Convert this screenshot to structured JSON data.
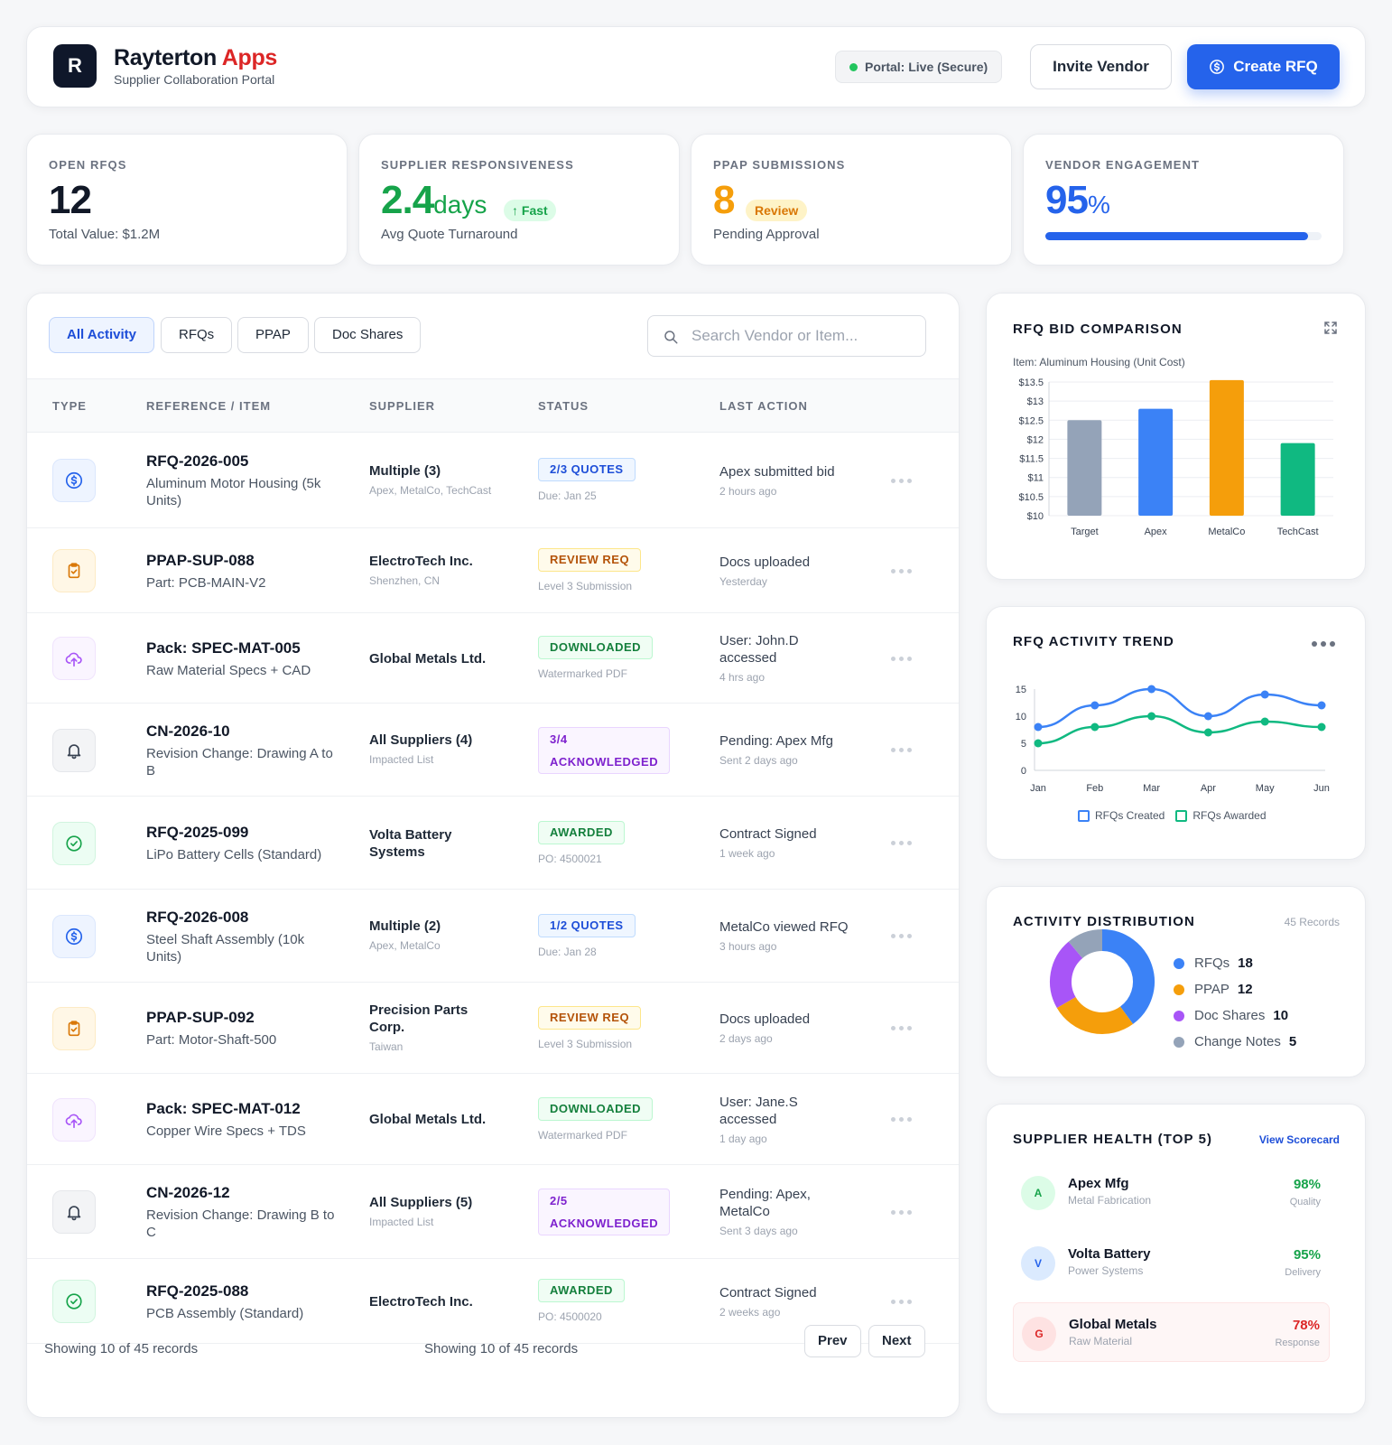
{
  "header": {
    "logo_letter": "R",
    "brand_name": "Rayterton",
    "brand_accent": "Apps",
    "subtitle": "Supplier Collaboration Portal",
    "portal_status": "Portal: Live (Secure)",
    "invite_label": "Invite Vendor",
    "create_label": "Create RFQ"
  },
  "kpis": {
    "open_rfqs": {
      "label": "OPEN RFQS",
      "value": "12",
      "sub": "Total Value: $1.2M"
    },
    "responsiveness": {
      "label": "SUPPLIER RESPONSIVENESS",
      "value": "2.4",
      "unit": "days",
      "tag": "Fast",
      "sub": "Avg Quote Turnaround"
    },
    "ppap": {
      "label": "PPAP SUBMISSIONS",
      "value": "8",
      "tag": "Review",
      "sub": "Pending Approval"
    },
    "engagement": {
      "label": "VENDOR ENGAGEMENT",
      "value": "95",
      "unit": "%",
      "progress": 0.95
    }
  },
  "filters": {
    "all": "All Activity",
    "rfqs": "RFQs",
    "ppap": "PPAP",
    "docs": "Doc Shares"
  },
  "search": {
    "placeholder": "Search Vendor or Item..."
  },
  "table": {
    "headers": [
      "TYPE",
      "REFERENCE / ITEM",
      "SUPPLIER",
      "STATUS",
      "LAST ACTION"
    ],
    "rows": [
      {
        "type": "rfq",
        "icon": "dollar-icon",
        "ref": "RFQ-2026-005",
        "desc": "Aluminum Motor Housing (5k Units)",
        "supplier": "Multiple (3)",
        "supplier_detail": "Apex, MetalCo, TechCast",
        "status": "2/3 QUOTES",
        "status_color": "blue",
        "status_note": "Due: Jan 25",
        "action": "Apex submitted bid",
        "action_time": "2 hours ago"
      },
      {
        "type": "ppap",
        "icon": "clipboard-check-icon",
        "ref": "PPAP-SUP-088",
        "desc": "Part: PCB-MAIN-V2",
        "supplier": "ElectroTech Inc.",
        "supplier_detail": "Shenzhen, CN",
        "status": "REVIEW REQ",
        "status_color": "amber",
        "status_note": "Level 3 Submission",
        "action": "Docs uploaded",
        "action_time": "Yesterday"
      },
      {
        "type": "doc",
        "icon": "cloud-upload-icon",
        "ref": "Pack: SPEC-MAT-005",
        "desc": "Raw Material Specs + CAD",
        "supplier": "Global Metals Ltd.",
        "supplier_detail": "",
        "status": "DOWNLOADED",
        "status_color": "green",
        "status_note": "Watermarked PDF",
        "action": "User: John.D accessed",
        "action_time": "4 hrs ago"
      },
      {
        "type": "change",
        "icon": "bell-icon",
        "ref": "CN-2026-10",
        "desc": "Revision Change: Drawing A to B",
        "supplier": "All Suppliers (4)",
        "supplier_detail": "Impacted List",
        "status": "3/4 ACKNOWLEDGED",
        "status_color": "purple",
        "status_note": "",
        "action": "Pending: Apex Mfg",
        "action_time": "Sent 2 days ago"
      },
      {
        "type": "awarded",
        "icon": "check-circle-icon",
        "ref": "RFQ-2025-099",
        "desc": "LiPo Battery Cells (Standard)",
        "supplier": "Volta Battery Systems",
        "supplier_detail": "",
        "status": "AWARDED",
        "status_color": "green",
        "status_note": "PO: 4500021",
        "action": "Contract Signed",
        "action_time": "1 week ago"
      },
      {
        "type": "rfq",
        "icon": "dollar-icon",
        "ref": "RFQ-2026-008",
        "desc": "Steel Shaft Assembly (10k Units)",
        "supplier": "Multiple (2)",
        "supplier_detail": "Apex, MetalCo",
        "status": "1/2 QUOTES",
        "status_color": "blue",
        "status_note": "Due: Jan 28",
        "action": "MetalCo viewed RFQ",
        "action_time": "3 hours ago"
      },
      {
        "type": "ppap",
        "icon": "clipboard-check-icon",
        "ref": "PPAP-SUP-092",
        "desc": "Part: Motor-Shaft-500",
        "supplier": "Precision Parts Corp.",
        "supplier_detail": "Taiwan",
        "status": "REVIEW REQ",
        "status_color": "amber",
        "status_note": "Level 3 Submission",
        "action": "Docs uploaded",
        "action_time": "2 days ago"
      },
      {
        "type": "doc",
        "icon": "cloud-upload-icon",
        "ref": "Pack: SPEC-MAT-012",
        "desc": "Copper Wire Specs + TDS",
        "supplier": "Global Metals Ltd.",
        "supplier_detail": "",
        "status": "DOWNLOADED",
        "status_color": "green",
        "status_note": "Watermarked PDF",
        "action": "User: Jane.S accessed",
        "action_time": "1 day ago"
      },
      {
        "type": "change",
        "icon": "bell-icon",
        "ref": "CN-2026-12",
        "desc": "Revision Change: Drawing B to C",
        "supplier": "All Suppliers (5)",
        "supplier_detail": "Impacted List",
        "status": "2/5 ACKNOWLEDGED",
        "status_color": "purple",
        "status_note": "",
        "action": "Pending: Apex, MetalCo",
        "action_time": "Sent 3 days ago"
      },
      {
        "type": "awarded",
        "icon": "check-circle-icon",
        "ref": "RFQ-2025-088",
        "desc": "PCB Assembly (Standard)",
        "supplier": "ElectroTech Inc.",
        "supplier_detail": "",
        "status": "AWARDED",
        "status_color": "green",
        "status_note": "PO: 4500020",
        "action": "Contract Signed",
        "action_time": "2 weeks ago"
      }
    ],
    "footer_text": "Showing 10 of 45 records",
    "prev_label": "Prev",
    "next_label": "Next"
  },
  "bid_panel": {
    "title": "RFQ BID COMPARISON",
    "subtitle": "Item: Aluminum Housing (Unit Cost)"
  },
  "trend_panel": {
    "title": "RFQ ACTIVITY TREND"
  },
  "dist_panel": {
    "title": "ACTIVITY DISTRIBUTION",
    "records": "45 Records",
    "items": [
      {
        "label": "RFQs",
        "value": "18",
        "color": "#3b82f6"
      },
      {
        "label": "PPAP",
        "value": "12",
        "color": "#f59e0b"
      },
      {
        "label": "Doc Shares",
        "value": "10",
        "color": "#a855f7"
      },
      {
        "label": "Change Notes",
        "value": "5",
        "color": "#94a3b8"
      }
    ]
  },
  "health_panel": {
    "title": "SUPPLIER HEALTH (TOP 5)",
    "link": "View Scorecard",
    "suppliers": [
      {
        "initial": "A",
        "name": "Apex Mfg",
        "sub": "Metal Fabrication",
        "score": "98%",
        "metric": "Quality"
      },
      {
        "initial": "V",
        "name": "Volta Battery",
        "sub": "Power Systems",
        "score": "95%",
        "metric": "Delivery"
      },
      {
        "initial": "G",
        "name": "Global Metals",
        "sub": "Raw Material",
        "score": "78%",
        "metric": "Response"
      }
    ]
  },
  "chart_data": [
    {
      "type": "bar",
      "title": "RFQ BID COMPARISON",
      "subtitle": "Item: Aluminum Housing (Unit Cost)",
      "categories": [
        "Target",
        "Apex",
        "MetalCo",
        "TechCast"
      ],
      "values": [
        12.5,
        12.8,
        13.55,
        11.9
      ],
      "colors": [
        "#94a3b8",
        "#3b82f6",
        "#f59e0b",
        "#10b981"
      ],
      "ylim": [
        10,
        13.5
      ],
      "yticks": [
        "$10",
        "$10.5",
        "$11",
        "$11.5",
        "$12",
        "$12.5",
        "$13",
        "$13.5"
      ],
      "grid": true
    },
    {
      "type": "line",
      "title": "RFQ ACTIVITY TREND",
      "x": [
        "Jan",
        "Feb",
        "Mar",
        "Apr",
        "May",
        "Jun"
      ],
      "series": [
        {
          "name": "RFQs Created",
          "values": [
            8,
            12,
            15,
            10,
            14,
            12
          ],
          "color": "#3b82f6"
        },
        {
          "name": "RFQs Awarded",
          "values": [
            5,
            8,
            10,
            7,
            9,
            8
          ],
          "color": "#10b981"
        }
      ],
      "ylim": [
        0,
        15
      ],
      "yticks": [
        "0",
        "5",
        "10",
        "15"
      ],
      "legend": "bottom"
    },
    {
      "type": "pie",
      "title": "ACTIVITY DISTRIBUTION",
      "labels": [
        "RFQs",
        "PPAP",
        "Doc Shares",
        "Change Notes"
      ],
      "values": [
        18,
        12,
        10,
        5
      ],
      "colors": [
        "#3b82f6",
        "#f59e0b",
        "#a855f7",
        "#94a3b8"
      ]
    }
  ]
}
